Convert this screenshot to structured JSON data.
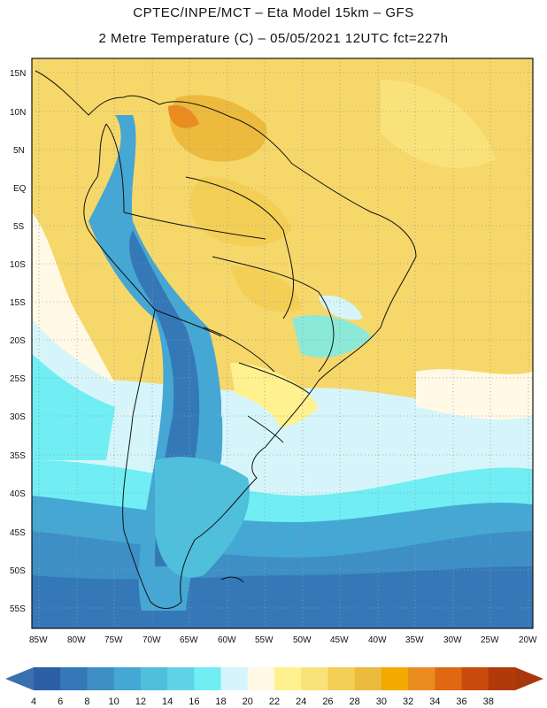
{
  "header": {
    "line1": "CPTEC/INPE/MCT –  Eta Model 15km – GFS",
    "line2": "2 Metre Temperature (C) – 05/05/2021 12UTC fct=227h"
  },
  "axes": {
    "lat_labels": [
      "15N",
      "10N",
      "5N",
      "EQ",
      "5S",
      "10S",
      "15S",
      "20S",
      "25S",
      "30S",
      "35S",
      "40S",
      "45S",
      "50S",
      "55S"
    ],
    "lon_labels": [
      "85W",
      "80W",
      "75W",
      "70W",
      "65W",
      "60W",
      "55W",
      "50W",
      "45W",
      "40W",
      "35W",
      "30W",
      "25W",
      "20W"
    ]
  },
  "colorbar": {
    "labels": [
      "4",
      "6",
      "8",
      "10",
      "12",
      "14",
      "16",
      "18",
      "20",
      "22",
      "24",
      "26",
      "28",
      "30",
      "32",
      "34",
      "36",
      "38"
    ],
    "colors": [
      "#2b5fa6",
      "#3478b8",
      "#3d8fc6",
      "#45a7d3",
      "#4fbfdc",
      "#5fd4e6",
      "#70eef4",
      "#d6f5fb",
      "#fff9e6",
      "#fff18f",
      "#fae27a",
      "#f4cf56",
      "#ecba3c",
      "#f2a900",
      "#ea8c1f",
      "#e06813",
      "#c94a0a",
      "#b03a0a"
    ],
    "under_color": "#3a6fb0",
    "over_color": "#a8380c"
  }
}
